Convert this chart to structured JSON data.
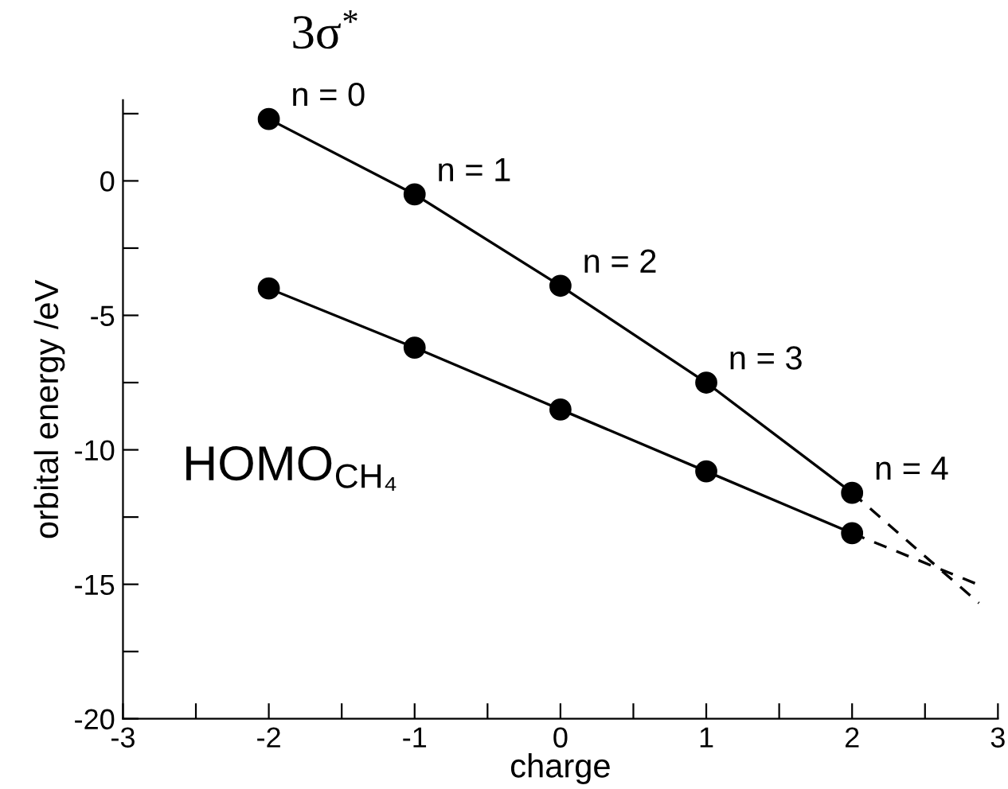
{
  "chart_data": {
    "type": "line",
    "xlabel": "charge",
    "ylabel": "orbital energy /eV",
    "xlim": [
      -3,
      3
    ],
    "ylim": [
      -20,
      3
    ],
    "xticks": [
      -3,
      {
        "value": -2.5,
        "label": null
      },
      -2,
      {
        "value": -1.5,
        "label": null
      },
      -1,
      {
        "value": -0.5,
        "label": null
      },
      0,
      {
        "value": 0.5,
        "label": null
      },
      1,
      {
        "value": 1.5,
        "label": null
      },
      2,
      {
        "value": 2.5,
        "label": null
      },
      3
    ],
    "yticks": [
      -20,
      {
        "value": -17.5,
        "label": null
      },
      -15,
      {
        "value": -12.5,
        "label": null
      },
      -10,
      {
        "value": -7.5,
        "label": null
      },
      -5,
      {
        "value": -2.5,
        "label": null
      },
      0,
      {
        "value": 2.5,
        "label": null
      }
    ],
    "grid": false,
    "legend": false,
    "marker": "circle",
    "line_style": "solid",
    "series": [
      {
        "name": "3σ$^{*}$",
        "color": "#000000",
        "x": [
          -2,
          -1,
          0,
          1,
          2
        ],
        "values": [
          2.3,
          -0.5,
          -3.9,
          -7.5,
          -11.6
        ]
      },
      {
        "name": "HOMO$_{CH₄}$",
        "color": "#000000",
        "x": [
          -2,
          -1,
          0,
          1,
          2
        ],
        "values": [
          -4.0,
          -6.2,
          -8.5,
          -10.8,
          -13.1
        ]
      },
      {
        "color": "#000000",
        "x": [
          2,
          2.87
        ],
        "values": [
          -11.6,
          -15.7
        ],
        "line_style": "dashed",
        "marker": "none"
      },
      {
        "color": "#000000",
        "x": [
          2,
          2.86
        ],
        "values": [
          -13.1,
          -15.0
        ],
        "line_style": "dashed",
        "marker": "none"
      }
    ],
    "annotations": [
      {
        "text": "n = 0",
        "x": -2,
        "y": 2.3
      },
      {
        "text": "n = 1",
        "x": -1,
        "y": -0.5
      },
      {
        "text": "n = 2",
        "x": 0,
        "y": -3.9
      },
      {
        "text": "n = 3",
        "x": 1,
        "y": -7.5
      },
      {
        "text": "n = 4",
        "x": 2,
        "y": -11.6
      }
    ]
  }
}
